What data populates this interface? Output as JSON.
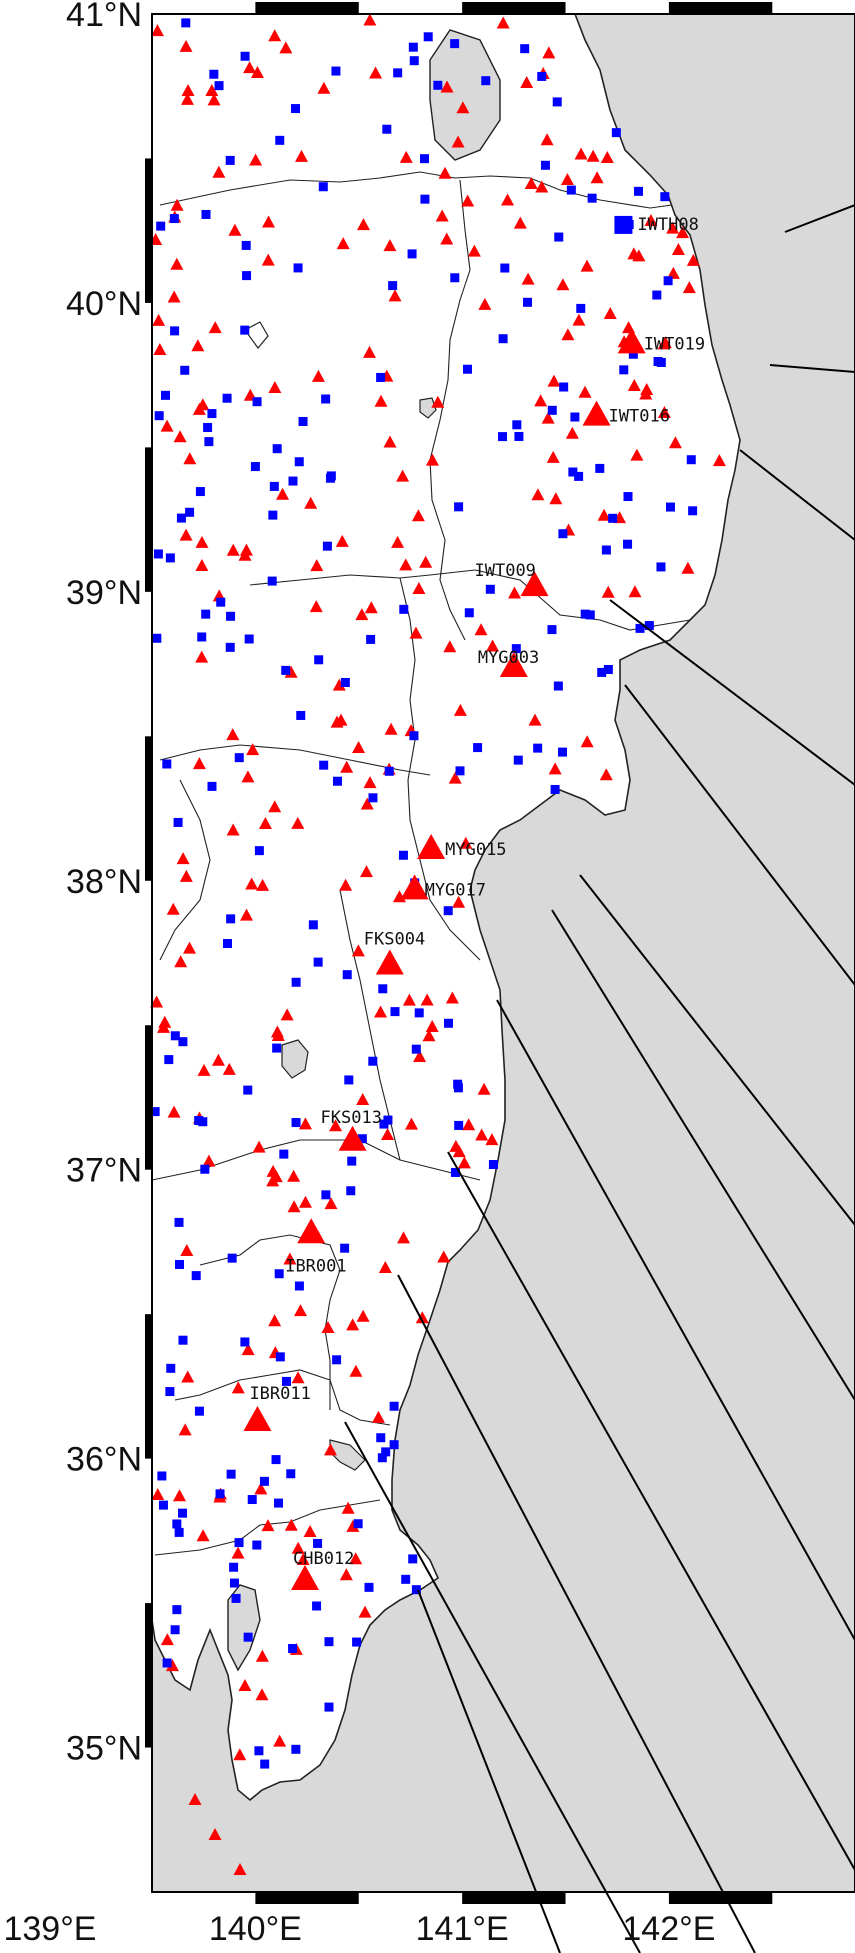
{
  "map": {
    "lat_labels": [
      "41°N",
      "40°N",
      "39°N",
      "38°N",
      "37°N",
      "36°N",
      "35°N"
    ],
    "lon_labels": [
      "139°E",
      "140°E",
      "141°E",
      "142°E"
    ],
    "lat_range": [
      34.5,
      41.0
    ],
    "lon_range": [
      139.5,
      142.9
    ],
    "colors": {
      "sea": "#d9d9d9",
      "land": "#ffffff",
      "coast": "#222222",
      "kik_net": "#ff0000",
      "k_net": "#0000ff"
    },
    "labelled_stations": [
      {
        "code": "IWTH08",
        "lon": 141.78,
        "lat": 40.27,
        "symbol": "square"
      },
      {
        "code": "IWT019",
        "lon": 141.82,
        "lat": 39.86,
        "symbol": "triangle"
      },
      {
        "code": "IWT016",
        "lon": 141.65,
        "lat": 39.61,
        "symbol": "triangle"
      },
      {
        "code": "IWT009",
        "lon": 141.35,
        "lat": 39.02,
        "symbol": "triangle"
      },
      {
        "code": "MYG003",
        "lon": 141.25,
        "lat": 38.74,
        "symbol": "triangle"
      },
      {
        "code": "MYG015",
        "lon": 140.85,
        "lat": 38.11,
        "symbol": "triangle"
      },
      {
        "code": "MYG017",
        "lon": 140.77,
        "lat": 37.97,
        "symbol": "triangle"
      },
      {
        "code": "FKS004",
        "lon": 140.65,
        "lat": 37.71,
        "symbol": "triangle"
      },
      {
        "code": "FKS013",
        "lon": 140.47,
        "lat": 37.1,
        "symbol": "triangle"
      },
      {
        "code": "IBR001",
        "lon": 140.27,
        "lat": 36.78,
        "symbol": "triangle"
      },
      {
        "code": "IBR011",
        "lon": 140.01,
        "lat": 36.13,
        "symbol": "triangle"
      },
      {
        "code": "CHB012",
        "lon": 140.24,
        "lat": 35.58,
        "symbol": "triangle"
      }
    ]
  }
}
